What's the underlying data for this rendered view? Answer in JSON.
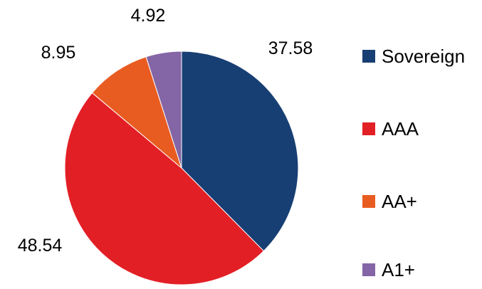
{
  "chart_data": {
    "type": "pie",
    "categories": [
      "Sovereign",
      "AAA",
      "AA+",
      "A1+"
    ],
    "values": [
      37.58,
      48.54,
      8.95,
      4.92
    ],
    "data_labels": [
      "37.58",
      "48.54",
      "8.95",
      "4.92"
    ],
    "colors": [
      "#173f73",
      "#e31f26",
      "#e95c21",
      "#8465a5"
    ],
    "start_angle_deg": 0,
    "direction": "clockwise",
    "legend": "right"
  }
}
